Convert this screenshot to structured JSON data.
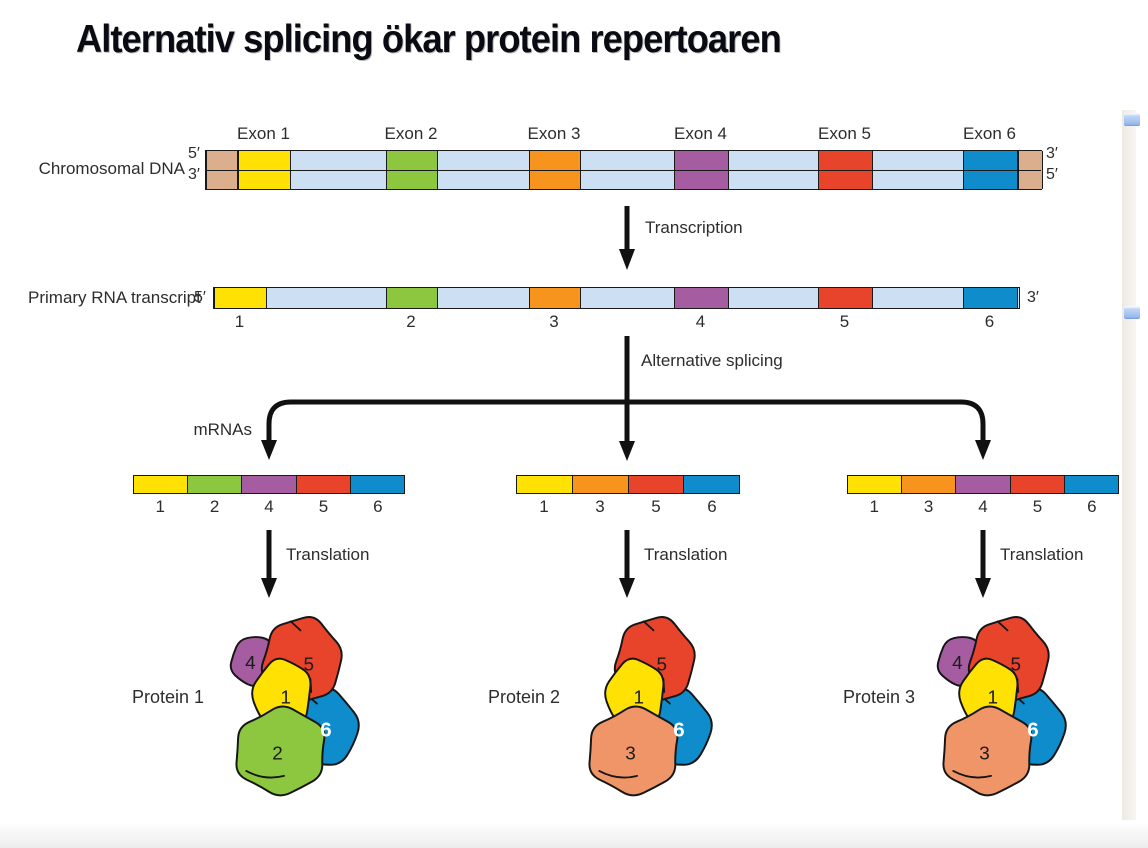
{
  "title": "Alternativ splicing ökar protein repertoaren",
  "colors": {
    "yellow": "#FFE204",
    "green": "#8DC63F",
    "orange": "#F7941E",
    "purple": "#A55CA0",
    "red": "#E8432B",
    "blue": "#0E8CCB",
    "salmon": "#EF9568",
    "tan": "#DBAF8D",
    "intron": "#CDDFF2",
    "outline": "#1A1A1A"
  },
  "dna": {
    "label": "Chromosomal DNA",
    "left_top_prime": "5′",
    "left_bottom_prime": "3′",
    "right_top_prime": "3′",
    "right_bottom_prime": "5′",
    "exons": [
      {
        "label": "Exon 1",
        "color": "yellow"
      },
      {
        "label": "Exon 2",
        "color": "green"
      },
      {
        "label": "Exon 3",
        "color": "orange"
      },
      {
        "label": "Exon 4",
        "color": "purple"
      },
      {
        "label": "Exon 5",
        "color": "red"
      },
      {
        "label": "Exon 6",
        "color": "blue"
      }
    ]
  },
  "transcription_label": "Transcription",
  "rna": {
    "label": "Primary RNA transcript",
    "left_prime": "5′",
    "right_prime": "3′",
    "exons": [
      {
        "number": "1",
        "color": "yellow"
      },
      {
        "number": "2",
        "color": "green"
      },
      {
        "number": "3",
        "color": "orange"
      },
      {
        "number": "4",
        "color": "purple"
      },
      {
        "number": "5",
        "color": "red"
      },
      {
        "number": "6",
        "color": "blue"
      }
    ]
  },
  "splicing_label": "Alternative splicing",
  "mrnas_label": "mRNAs",
  "mrnas": [
    {
      "segments": [
        {
          "number": "1",
          "color": "yellow"
        },
        {
          "number": "2",
          "color": "green"
        },
        {
          "number": "4",
          "color": "purple"
        },
        {
          "number": "5",
          "color": "red"
        },
        {
          "number": "6",
          "color": "blue"
        }
      ]
    },
    {
      "segments": [
        {
          "number": "1",
          "color": "yellow"
        },
        {
          "number": "3",
          "color": "orange"
        },
        {
          "number": "5",
          "color": "red"
        },
        {
          "number": "6",
          "color": "blue"
        }
      ]
    },
    {
      "segments": [
        {
          "number": "1",
          "color": "yellow"
        },
        {
          "number": "3",
          "color": "orange"
        },
        {
          "number": "4",
          "color": "purple"
        },
        {
          "number": "5",
          "color": "red"
        },
        {
          "number": "6",
          "color": "blue"
        }
      ]
    }
  ],
  "translation_label": "Translation",
  "proteins": [
    {
      "label": "Protein 1",
      "subunits": [
        {
          "number": "4",
          "color": "purple",
          "pos": "topleft"
        },
        {
          "number": "6",
          "color": "blue",
          "pos": "right"
        },
        {
          "number": "5",
          "color": "red",
          "pos": "top"
        },
        {
          "number": "1",
          "color": "yellow",
          "pos": "center"
        },
        {
          "number": "2",
          "color": "green",
          "pos": "bottomleft"
        }
      ]
    },
    {
      "label": "Protein 2",
      "subunits": [
        {
          "number": "6",
          "color": "blue",
          "pos": "right"
        },
        {
          "number": "5",
          "color": "red",
          "pos": "top"
        },
        {
          "number": "1",
          "color": "yellow",
          "pos": "center"
        },
        {
          "number": "3",
          "color": "salmon",
          "pos": "bottomleft"
        }
      ]
    },
    {
      "label": "Protein 3",
      "subunits": [
        {
          "number": "4",
          "color": "purple",
          "pos": "topleft"
        },
        {
          "number": "6",
          "color": "blue",
          "pos": "right"
        },
        {
          "number": "5",
          "color": "red",
          "pos": "top"
        },
        {
          "number": "1",
          "color": "yellow",
          "pos": "center"
        },
        {
          "number": "3",
          "color": "salmon",
          "pos": "bottomleft"
        }
      ]
    }
  ]
}
